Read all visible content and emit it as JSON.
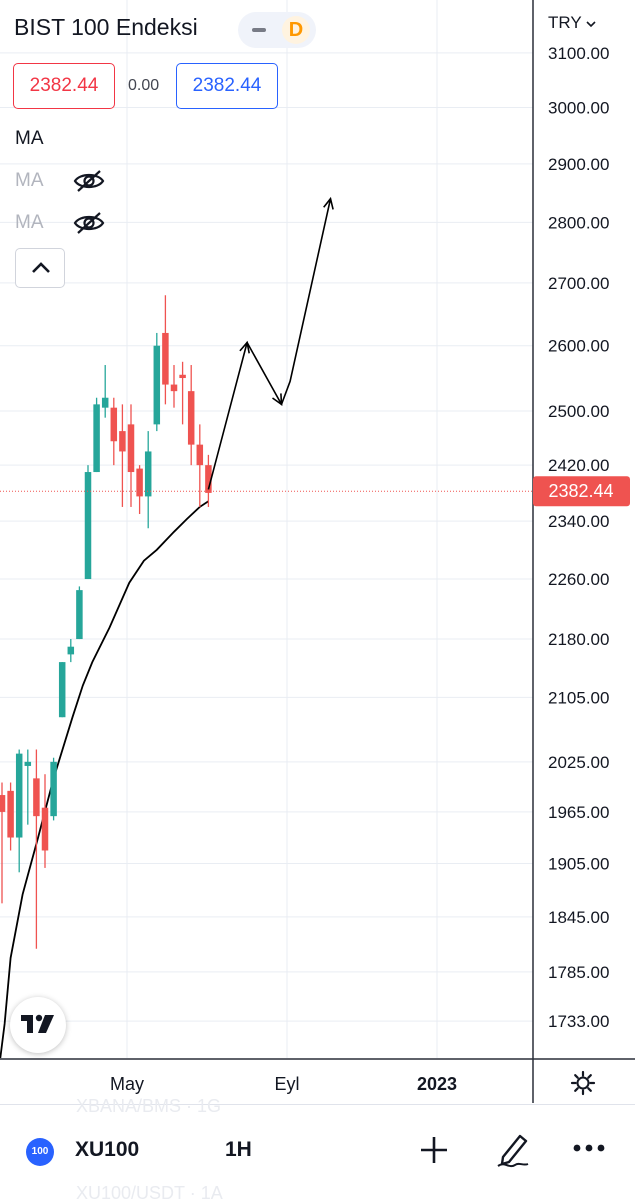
{
  "header": {
    "title": "BIST 100 Endeksi",
    "interval_badge": "D",
    "bid": "2382.44",
    "spread": "0.00",
    "ask": "2382.44"
  },
  "indicators": {
    "main_label": "MA",
    "sub": [
      {
        "label": "MA",
        "icon": "eye-off-icon"
      },
      {
        "label": "MA",
        "icon": "eye-off-icon"
      }
    ],
    "collapse_icon": "chevron-up-icon"
  },
  "currency": "TRY",
  "currency_icon": "chevron-down-icon",
  "settings_icon": "gear-icon",
  "logo_icon": "tradingview-logo-icon",
  "toolbar": {
    "symbol_badge": "100",
    "symbol": "XU100",
    "interval": "1H",
    "plus_icon": "plus-icon",
    "draw_icon": "pen-icon",
    "more_icon": "more-icon",
    "ghost_rows": [
      "XBANA/BMS · 1G",
      "XU100/USDT · 1A"
    ]
  },
  "colors": {
    "up": "#26a69a",
    "down": "#ef5350",
    "ma_line": "#000000",
    "price_label_bg": "#ef5350"
  },
  "chart_data": {
    "type": "candlestick",
    "symbol": "BIST 100 Endeksi",
    "currency": "TRY",
    "y_axis_scale": "log",
    "ylim": [
      1695,
      3200
    ],
    "y_ticks": [
      3100,
      3000,
      2900,
      2800,
      2700,
      2600,
      2500,
      2420,
      2340,
      2260,
      2180,
      2105,
      2025,
      1965,
      1905,
      1845,
      1785,
      1733
    ],
    "y_tick_labels": [
      "3100.00",
      "3000.00",
      "2900.00",
      "2800.00",
      "2700.00",
      "2600.00",
      "2500.00",
      "2420.00",
      "2340.00",
      "2260.00",
      "2180.00",
      "2105.00",
      "2025.00",
      "1965.00",
      "1905.00",
      "1845.00",
      "1785.00",
      "1733.00"
    ],
    "x_labels": [
      "May",
      "Eyl",
      "2023"
    ],
    "current_price": 2382.44,
    "current_price_label": "2382.44",
    "grid": true,
    "candles": [
      {
        "o": 1985,
        "h": 2000,
        "l": 1860,
        "c": 1965
      },
      {
        "o": 1990,
        "h": 2000,
        "l": 1920,
        "c": 1935
      },
      {
        "o": 1935,
        "h": 2040,
        "l": 1895,
        "c": 2035
      },
      {
        "o": 2020,
        "h": 2040,
        "l": 1950,
        "c": 2025
      },
      {
        "o": 2005,
        "h": 2040,
        "l": 1810,
        "c": 1960
      },
      {
        "o": 1970,
        "h": 2010,
        "l": 1900,
        "c": 1920
      },
      {
        "o": 1960,
        "h": 2030,
        "l": 1955,
        "c": 2025
      },
      {
        "o": 2080,
        "h": 2150,
        "l": 2080,
        "c": 2150
      },
      {
        "o": 2160,
        "h": 2180,
        "l": 2150,
        "c": 2170
      },
      {
        "o": 2180,
        "h": 2250,
        "l": 2180,
        "c": 2245
      },
      {
        "o": 2260,
        "h": 2420,
        "l": 2260,
        "c": 2410
      },
      {
        "o": 2410,
        "h": 2520,
        "l": 2410,
        "c": 2510
      },
      {
        "o": 2505,
        "h": 2570,
        "l": 2490,
        "c": 2520
      },
      {
        "o": 2505,
        "h": 2520,
        "l": 2420,
        "c": 2455
      },
      {
        "o": 2470,
        "h": 2510,
        "l": 2360,
        "c": 2440
      },
      {
        "o": 2480,
        "h": 2510,
        "l": 2360,
        "c": 2410
      },
      {
        "o": 2415,
        "h": 2420,
        "l": 2350,
        "c": 2375
      },
      {
        "o": 2375,
        "h": 2470,
        "l": 2330,
        "c": 2440
      },
      {
        "o": 2480,
        "h": 2620,
        "l": 2470,
        "c": 2600
      },
      {
        "o": 2620,
        "h": 2680,
        "l": 2510,
        "c": 2540
      },
      {
        "o": 2540,
        "h": 2570,
        "l": 2505,
        "c": 2530
      },
      {
        "o": 2555,
        "h": 2575,
        "l": 2480,
        "c": 2550
      },
      {
        "o": 2530,
        "h": 2570,
        "l": 2420,
        "c": 2450
      },
      {
        "o": 2450,
        "h": 2480,
        "l": 2360,
        "c": 2420
      },
      {
        "o": 2420,
        "h": 2435,
        "l": 2360,
        "c": 2380
      }
    ],
    "moving_average": [
      {
        "t": -0.2,
        "v": 1695
      },
      {
        "t": 0.3,
        "v": 1730
      },
      {
        "t": 1.0,
        "v": 1800
      },
      {
        "t": 2.4,
        "v": 1870
      },
      {
        "t": 4.2,
        "v": 1935
      },
      {
        "t": 6.0,
        "v": 2005
      },
      {
        "t": 8.2,
        "v": 2080
      },
      {
        "t": 9.4,
        "v": 2120
      },
      {
        "t": 10.5,
        "v": 2150
      },
      {
        "t": 12.5,
        "v": 2195
      },
      {
        "t": 14.8,
        "v": 2255
      },
      {
        "t": 16.5,
        "v": 2285
      },
      {
        "t": 18.0,
        "v": 2300
      },
      {
        "t": 20.0,
        "v": 2325
      },
      {
        "t": 21.5,
        "v": 2343
      },
      {
        "t": 23.0,
        "v": 2360
      },
      {
        "t": 24.0,
        "v": 2368
      }
    ],
    "projection_path": [
      {
        "t": 24.0,
        "v": 2385
      },
      {
        "t": 28.5,
        "v": 2605
      },
      {
        "t": 32.5,
        "v": 2510
      },
      {
        "t": 33.5,
        "v": 2545
      },
      {
        "t": 38.2,
        "v": 2840
      }
    ]
  }
}
